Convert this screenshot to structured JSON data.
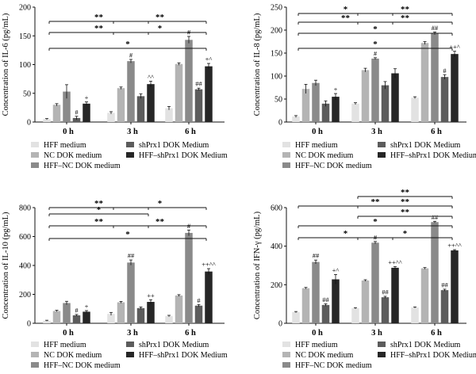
{
  "series_styles": [
    {
      "name": "HFF medium",
      "color": "#e2e2e2"
    },
    {
      "name": "NC DOK medium",
      "color": "#b4b4b4"
    },
    {
      "name": "HFF–NC DOK medium",
      "color": "#8a8a8a"
    },
    {
      "name": "shPrx1 DOK Medium",
      "color": "#5c5c5c"
    },
    {
      "name": "HFF–shPrx1 DOK Medium",
      "color": "#262626"
    }
  ],
  "chart_data": [
    {
      "type": "bar",
      "ylabel": "Concentration of IL-6 (pg/mL)",
      "ylim": [
        0,
        200
      ],
      "yticks": [
        "0",
        "50",
        "100",
        "150",
        "200"
      ],
      "categories": [
        "0 h",
        "3 h",
        "6 h"
      ],
      "legend": [
        "HFF medium",
        "shPrx1 DOK Medium",
        "NC DOK medium",
        "HFF–shPrx1 DOK Medium",
        "HFF–NC DOK medium"
      ],
      "series": [
        {
          "name": "HFF medium",
          "values": [
            5,
            16,
            24
          ],
          "errors": [
            1,
            2,
            3
          ],
          "labels": [
            "",
            "",
            ""
          ]
        },
        {
          "name": "NC DOK medium",
          "values": [
            30,
            59,
            101
          ],
          "errors": [
            2,
            2,
            2
          ],
          "labels": [
            "",
            "",
            ""
          ]
        },
        {
          "name": "HFF–NC DOK medium",
          "values": [
            53,
            106,
            143
          ],
          "errors": [
            12,
            3,
            6
          ],
          "labels": [
            "",
            "#",
            "#"
          ]
        },
        {
          "name": "shPrx1 DOK Medium",
          "values": [
            7,
            45,
            57
          ],
          "errors": [
            3,
            4,
            2
          ],
          "labels": [
            "#",
            "",
            "##"
          ]
        },
        {
          "name": "HFF–shPrx1 DOK Medium",
          "values": [
            32,
            66,
            97
          ],
          "errors": [
            3,
            5,
            5
          ],
          "labels": [
            "+",
            "^^",
            "+^"
          ]
        }
      ],
      "brackets": [
        {
          "from": "0 h",
          "to": "6 h",
          "level": 1,
          "label": "*"
        },
        {
          "from": "0 h",
          "to": "3 h",
          "level": 2,
          "label": "**"
        },
        {
          "from": "3 h",
          "to": "6 h",
          "level": 2,
          "label": "*"
        },
        {
          "from": "0 h",
          "to": "3 h",
          "level": 3,
          "label": "**"
        },
        {
          "from": "3 h",
          "to": "6 h",
          "level": 3,
          "label": "**"
        }
      ]
    },
    {
      "type": "bar",
      "ylabel": "Concentration of IL-8 (pg/mL)",
      "ylim": [
        0,
        250
      ],
      "yticks": [
        "0",
        "50",
        "100",
        "150",
        "200",
        "250"
      ],
      "categories": [
        "0 h",
        "3 h",
        "6 h"
      ],
      "legend": [
        "HFF medium",
        "shPrx1 DOK Medium",
        "NC DOK medium",
        "HFF–shPrx1 DOK Medium",
        "HFF–NC DOK medium"
      ],
      "series": [
        {
          "name": "HFF medium",
          "values": [
            12,
            40,
            53
          ],
          "errors": [
            2,
            2,
            2
          ],
          "labels": [
            "",
            "",
            ""
          ]
        },
        {
          "name": "NC DOK medium",
          "values": [
            72,
            113,
            172
          ],
          "errors": [
            10,
            4,
            3
          ],
          "labels": [
            "",
            "",
            ""
          ]
        },
        {
          "name": "HFF–NC DOK medium",
          "values": [
            85,
            138,
            193
          ],
          "errors": [
            6,
            2,
            3
          ],
          "labels": [
            "",
            "#",
            "##"
          ]
        },
        {
          "name": "shPrx1 DOK Medium",
          "values": [
            40,
            80,
            98
          ],
          "errors": [
            6,
            8,
            5
          ],
          "labels": [
            "",
            "",
            "#"
          ]
        },
        {
          "name": "HFF–shPrx1 DOK Medium",
          "values": [
            55,
            106,
            148
          ],
          "errors": [
            7,
            10,
            6
          ],
          "labels": [
            "+",
            "",
            "++^"
          ]
        }
      ],
      "brackets": [
        {
          "from": "0 h",
          "to": "6 h",
          "level": 1,
          "label": "*"
        },
        {
          "from": "0 h",
          "to": "6 h",
          "level": 2,
          "label": "*"
        },
        {
          "from": "0 h",
          "to": "3 h",
          "level": 3,
          "label": "**"
        },
        {
          "from": "3 h",
          "to": "6 h",
          "level": 3,
          "label": "**"
        },
        {
          "from": "0 h",
          "to": "3 h",
          "level": 4,
          "label": "*"
        },
        {
          "from": "3 h",
          "to": "6 h",
          "level": 4,
          "label": "**"
        }
      ]
    },
    {
      "type": "bar",
      "ylabel": "Concentration of IL-10 (pg/mL)",
      "ylim": [
        0,
        800
      ],
      "yticks": [
        "0",
        "200",
        "400",
        "600",
        "800"
      ],
      "categories": [
        "0 h",
        "3 h",
        "6 h"
      ],
      "legend": [
        "HFF medium",
        "shPrx1 DOK Medium",
        "NC DOK medium",
        "HFF–shPrx1 DOK Medium",
        "HFF–NC DOK medium"
      ],
      "series": [
        {
          "name": "HFF medium",
          "values": [
            18,
            65,
            50
          ],
          "errors": [
            3,
            10,
            5
          ],
          "labels": [
            "",
            "",
            ""
          ]
        },
        {
          "name": "NC DOK medium",
          "values": [
            85,
            145,
            192
          ],
          "errors": [
            5,
            6,
            6
          ],
          "labels": [
            "",
            "",
            ""
          ]
        },
        {
          "name": "HFF–NC DOK medium",
          "values": [
            140,
            420,
            625
          ],
          "errors": [
            12,
            18,
            20
          ],
          "labels": [
            "",
            "##",
            "#"
          ]
        },
        {
          "name": "shPrx1 DOK Medium",
          "values": [
            55,
            105,
            122
          ],
          "errors": [
            6,
            8,
            8
          ],
          "labels": [
            "#",
            "",
            "#"
          ]
        },
        {
          "name": "HFF–shPrx1 DOK Medium",
          "values": [
            80,
            148,
            358
          ],
          "errors": [
            8,
            15,
            20
          ],
          "labels": [
            "+",
            "++",
            "++^^"
          ]
        }
      ],
      "brackets": [
        {
          "from": "0 h",
          "to": "6 h",
          "level": 1,
          "label": "*"
        },
        {
          "from": "0 h",
          "to": "3 h",
          "level": 2,
          "label": "**"
        },
        {
          "from": "3 h",
          "to": "6 h",
          "level": 2,
          "label": "**"
        },
        {
          "from": "0 h",
          "to": "3 h",
          "level": 3,
          "label": "*"
        },
        {
          "from": "0 h",
          "to": "3 h",
          "level": 4,
          "label": "**"
        },
        {
          "from": "3 h",
          "to": "6 h",
          "level": 4,
          "label": "*"
        }
      ]
    },
    {
      "type": "bar",
      "ylabel": "Concentration of IFN-γ (pg/mL)",
      "ylim": [
        0,
        600
      ],
      "yticks": [
        "0",
        "200",
        "400",
        "600"
      ],
      "categories": [
        "0 h",
        "3 h",
        "6 h"
      ],
      "legend": [
        "HFF medium",
        "shPrx1 DOK Medium",
        "NC DOK medium",
        "HFF–shPrx1 DOK Medium",
        "HFF–NC DOK medium"
      ],
      "series": [
        {
          "name": "HFF medium",
          "values": [
            58,
            78,
            82
          ],
          "errors": [
            3,
            3,
            3
          ],
          "labels": [
            "",
            "",
            ""
          ]
        },
        {
          "name": "NC DOK medium",
          "values": [
            182,
            222,
            285
          ],
          "errors": [
            4,
            4,
            4
          ],
          "labels": [
            "",
            "",
            ""
          ]
        },
        {
          "name": "HFF–NC DOK medium",
          "values": [
            318,
            418,
            525
          ],
          "errors": [
            10,
            6,
            4
          ],
          "labels": [
            "##",
            "#",
            "##"
          ]
        },
        {
          "name": "shPrx1 DOK Medium",
          "values": [
            95,
            135,
            172
          ],
          "errors": [
            6,
            5,
            5
          ],
          "labels": [
            "##",
            "##",
            "##"
          ]
        },
        {
          "name": "HFF–shPrx1 DOK Medium",
          "values": [
            228,
            288,
            378
          ],
          "errors": [
            25,
            6,
            4
          ],
          "labels": [
            "+^",
            "++^^",
            "++^^"
          ]
        }
      ],
      "brackets": [
        {
          "from": "0 h",
          "to": "3 h",
          "level": 1,
          "label": "*"
        },
        {
          "from": "3 h",
          "to": "6 h",
          "level": 1,
          "label": "*"
        },
        {
          "from": "0 h",
          "to": "6 h",
          "level": 2,
          "label": "*"
        },
        {
          "from": "3 h",
          "to": "6 h",
          "level": 3,
          "label": "**"
        },
        {
          "from": "0 h",
          "to": "6 h",
          "level": 4,
          "label": "**"
        },
        {
          "from": "3 h",
          "to": "6 h",
          "level": 4,
          "label": "**"
        },
        {
          "from": "3 h",
          "to": "6 h",
          "level": 5,
          "label": "**"
        }
      ]
    }
  ]
}
